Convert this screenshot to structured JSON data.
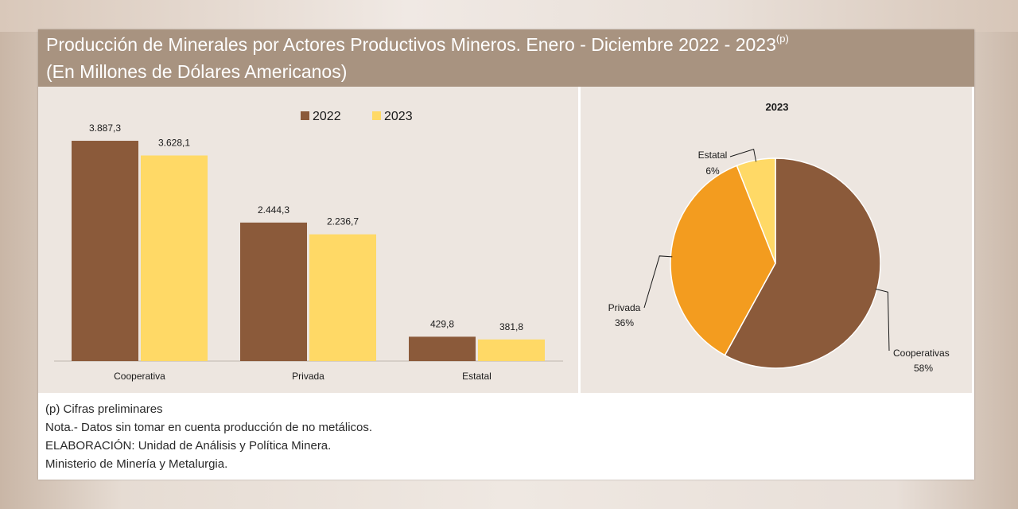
{
  "header": {
    "title_line1": "Producción de Minerales por Actores Productivos Mineros. Enero - Diciembre 2022 - 2023",
    "title_superscript": "(p)",
    "title_line2": "(En Millones de Dólares Americanos)"
  },
  "colors": {
    "series_2022": "#8b5a3a",
    "series_2023": "#ffd966",
    "pie_cooperativas": "#8b5a3a",
    "pie_privada": "#f39c1f",
    "pie_estatal": "#ffd966"
  },
  "chart_data": [
    {
      "type": "bar",
      "categories": [
        "Cooperativa",
        "Privada",
        "Estatal"
      ],
      "series": [
        {
          "name": "2022",
          "values": [
            3887.3,
            2444.3,
            429.8
          ],
          "labels": [
            "3.887,3",
            "2.444,3",
            "429,8"
          ]
        },
        {
          "name": "2023",
          "values": [
            3628.1,
            2236.7,
            381.8
          ],
          "labels": [
            "3.628,1",
            "2.236,7",
            "381,8"
          ]
        }
      ],
      "ylim": [
        0,
        4000
      ],
      "grid": false,
      "legend_position": "top-right"
    },
    {
      "type": "pie",
      "title": "2023",
      "slices": [
        {
          "name": "Cooperativas",
          "value": 58,
          "label": "58%"
        },
        {
          "name": "Privada",
          "value": 36,
          "label": "36%"
        },
        {
          "name": "Estatal",
          "value": 6,
          "label": "6%"
        }
      ]
    }
  ],
  "notes": [
    "(p) Cifras preliminares",
    "Nota.- Datos sin tomar en cuenta producción de no metálicos.",
    "ELABORACIÓN: Unidad de Análisis y Política Minera.",
    "Ministerio de Minería y Metalurgia."
  ]
}
